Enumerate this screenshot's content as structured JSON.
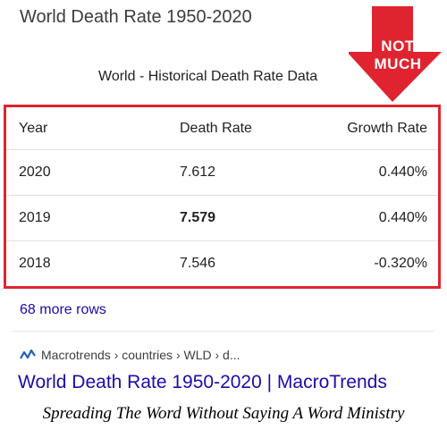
{
  "page": {
    "title": "World Death Rate 1950-2020"
  },
  "table": {
    "caption": "World - Historical Death Rate Data",
    "columns": [
      "Year",
      "Death Rate",
      "Growth Rate"
    ],
    "rows": [
      {
        "year": "2020",
        "rate": "7.612",
        "growth": "0.440%"
      },
      {
        "year": "2019",
        "rate": "7.579",
        "growth": "0.440%"
      },
      {
        "year": "2018",
        "rate": "7.546",
        "growth": "-0.320%"
      }
    ]
  },
  "more_rows": "68 more rows",
  "source": {
    "icon": "macrotrends-logo-icon",
    "breadcrumb": "Macrotrends › countries › WLD › d..."
  },
  "result_title": "World Death Rate 1950-2020 | MacroTrends",
  "badge": {
    "line1": "NOT",
    "line2": "MUCH",
    "color": "#e0242f"
  },
  "caption": "Spreading The Word Without Saying A Word Ministry",
  "colors": {
    "highlight": "#e0242f",
    "link": "#1a0dab"
  }
}
